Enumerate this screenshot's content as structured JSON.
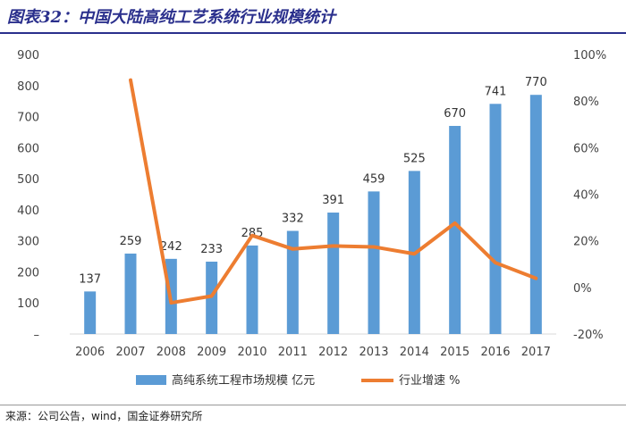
{
  "title": "图表32：中国大陆高纯工艺系统行业规模统计",
  "source": "来源：公司公告，wind，国金证券研究所",
  "colors": {
    "bar": "#5b9bd5",
    "line": "#ed7d31",
    "title": "#2a2f8c"
  },
  "chart_data": {
    "type": "bar+line",
    "categories": [
      "2006",
      "2007",
      "2008",
      "2009",
      "2010",
      "2011",
      "2012",
      "2013",
      "2014",
      "2015",
      "2016",
      "2017"
    ],
    "series": [
      {
        "name": "高纯系统工程市场规模 亿元",
        "type": "bar",
        "axis": "left",
        "values": [
          137,
          259,
          242,
          233,
          285,
          332,
          391,
          459,
          525,
          670,
          741,
          770
        ]
      },
      {
        "name": "行业增速 %",
        "type": "line",
        "axis": "right",
        "values": [
          null,
          89,
          -6.6,
          -3.7,
          22.3,
          16.5,
          17.8,
          17.4,
          14.4,
          27.6,
          10.6,
          3.9
        ]
      }
    ],
    "y_left": {
      "min": 0,
      "max": 900,
      "ticks": [
        "–",
        "100",
        "200",
        "300",
        "400",
        "500",
        "600",
        "700",
        "800",
        "900"
      ]
    },
    "y_right": {
      "min": -20,
      "max": 100,
      "ticks": [
        "-20%",
        "0%",
        "20%",
        "40%",
        "60%",
        "80%",
        "100%"
      ]
    },
    "legend_position": "bottom",
    "grid": false
  }
}
